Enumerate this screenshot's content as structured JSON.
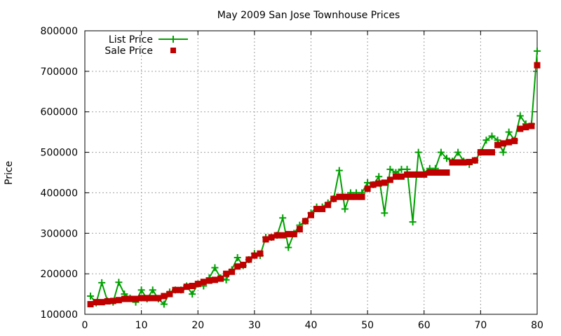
{
  "chart_data": {
    "type": "line",
    "title": "May 2009 San Jose Townhouse Prices",
    "xlabel": "",
    "ylabel": "Price",
    "xlim": [
      0,
      80
    ],
    "ylim": [
      100000,
      800000
    ],
    "x_ticks": [
      0,
      10,
      20,
      30,
      40,
      50,
      60,
      70,
      80
    ],
    "y_ticks": [
      100000,
      200000,
      300000,
      400000,
      500000,
      600000,
      700000,
      800000
    ],
    "grid": true,
    "legend_position": "top-left",
    "series": [
      {
        "name": "List Price",
        "style": "line-plus",
        "color": "#00a000",
        "x": [
          1,
          2,
          3,
          4,
          5,
          6,
          7,
          8,
          9,
          10,
          11,
          12,
          13,
          14,
          15,
          16,
          17,
          18,
          19,
          20,
          21,
          22,
          23,
          24,
          25,
          26,
          27,
          28,
          29,
          30,
          31,
          32,
          33,
          34,
          35,
          36,
          37,
          38,
          39,
          40,
          41,
          42,
          43,
          44,
          45,
          46,
          47,
          48,
          49,
          50,
          51,
          52,
          53,
          54,
          55,
          56,
          57,
          58,
          59,
          60,
          61,
          62,
          63,
          64,
          65,
          66,
          67,
          68,
          69,
          70,
          71,
          72,
          73,
          74,
          75,
          76,
          77,
          78,
          79,
          80
        ],
        "values": [
          145000,
          128000,
          178000,
          133000,
          130000,
          179000,
          150000,
          140000,
          130000,
          160000,
          138000,
          160000,
          138000,
          125000,
          155000,
          160000,
          160000,
          170000,
          150000,
          175000,
          170000,
          190000,
          215000,
          190000,
          185000,
          210000,
          240000,
          220000,
          235000,
          250000,
          245000,
          290000,
          290000,
          295000,
          338000,
          265000,
          300000,
          320000,
          330000,
          350000,
          365000,
          365000,
          375000,
          385000,
          455000,
          360000,
          400000,
          400000,
          400000,
          425000,
          420000,
          440000,
          350000,
          458000,
          450000,
          458000,
          458000,
          328000,
          500000,
          450000,
          460000,
          460000,
          500000,
          485000,
          478000,
          500000,
          478000,
          470000,
          480000,
          500000,
          530000,
          540000,
          530000,
          500000,
          550000,
          530000,
          590000,
          570000,
          570000,
          750000
        ]
      },
      {
        "name": "Sale Price",
        "style": "points-square",
        "color": "#c00000",
        "x": [
          1,
          2,
          3,
          4,
          5,
          6,
          7,
          8,
          9,
          10,
          11,
          12,
          13,
          14,
          15,
          16,
          17,
          18,
          19,
          20,
          21,
          22,
          23,
          24,
          25,
          26,
          27,
          28,
          29,
          30,
          31,
          32,
          33,
          34,
          35,
          36,
          37,
          38,
          39,
          40,
          41,
          42,
          43,
          44,
          45,
          46,
          47,
          48,
          49,
          50,
          51,
          52,
          53,
          54,
          55,
          56,
          57,
          58,
          59,
          60,
          61,
          62,
          63,
          64,
          65,
          66,
          67,
          68,
          69,
          70,
          71,
          72,
          73,
          74,
          75,
          76,
          77,
          78,
          79,
          80
        ],
        "values": [
          125000,
          130000,
          130000,
          132000,
          133000,
          135000,
          138000,
          138000,
          138000,
          140000,
          140000,
          140000,
          140000,
          145000,
          150000,
          160000,
          160000,
          168000,
          170000,
          175000,
          180000,
          183000,
          185000,
          188000,
          200000,
          205000,
          218000,
          222000,
          235000,
          245000,
          250000,
          285000,
          290000,
          295000,
          295000,
          298000,
          298000,
          310000,
          330000,
          345000,
          360000,
          360000,
          370000,
          385000,
          390000,
          390000,
          390000,
          390000,
          390000,
          410000,
          420000,
          423000,
          425000,
          432000,
          440000,
          440000,
          445000,
          445000,
          445000,
          445000,
          450000,
          450000,
          450000,
          450000,
          475000,
          475000,
          475000,
          476000,
          480000,
          500000,
          500000,
          500000,
          518000,
          522000,
          525000,
          528000,
          558000,
          562000,
          565000,
          715000
        ]
      }
    ]
  }
}
